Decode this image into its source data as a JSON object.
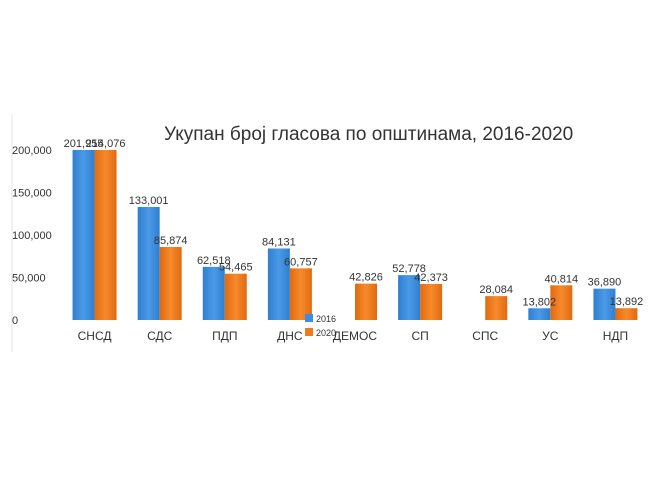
{
  "chart_data": {
    "type": "bar",
    "title": "Укупан број гласова по општинама, 2016-2020",
    "xlabel": "",
    "ylabel": "",
    "ylim": [
      0,
      200000
    ],
    "yticks": [
      "0",
      "50,000",
      "100,000",
      "150,000",
      "200,000"
    ],
    "categories": [
      "СНСД",
      "СДС",
      "ПДП",
      "ДНС",
      "ДЕМОС",
      "СП",
      "СПС",
      "УС",
      "НДП"
    ],
    "series": [
      {
        "name": "2016",
        "color": "#3d8ee0",
        "values": [
          201955,
          133001,
          62518,
          84131,
          null,
          52778,
          null,
          13802,
          36890
        ],
        "labels": [
          "201,955",
          "133,001",
          "62,518",
          "84,131",
          "",
          "52,778",
          "",
          "13,802",
          "36,890"
        ]
      },
      {
        "name": "2020",
        "color": "#f07a1a",
        "values": [
          214076,
          85874,
          54465,
          60757,
          42826,
          42373,
          28084,
          40814,
          13892
        ],
        "labels": [
          "214,076",
          "85,874",
          "54,465",
          "60,757",
          "42,826",
          "42,373",
          "28,084",
          "40,814",
          "13,892"
        ]
      }
    ],
    "grid": false,
    "legend_position": "center-bottom"
  }
}
